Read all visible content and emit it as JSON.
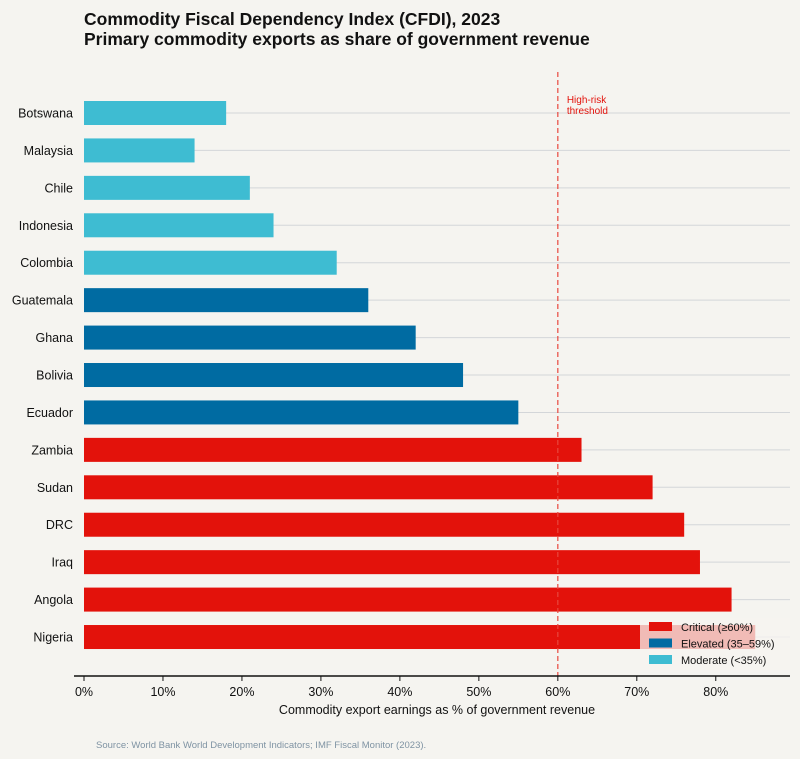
{
  "chart_data": {
    "type": "bar",
    "orientation": "horizontal",
    "title": "Commodity Fiscal Dependency Index (CFDI), 2023",
    "subtitle": "Primary commodity exports as share of government revenue",
    "xlabel": "Commodity export earnings as % of government revenue",
    "xlim": [
      0,
      89.4
    ],
    "xticks": [
      "0%",
      "10%",
      "20%",
      "30%",
      "40%",
      "50%",
      "60%",
      "70%",
      "80%"
    ],
    "grid": "horizontal",
    "categories": [
      "Botswana",
      "Malaysia",
      "Chile",
      "Indonesia",
      "Colombia",
      "Guatemala",
      "Ghana",
      "Bolivia",
      "Ecuador",
      "Zambia",
      "Sudan",
      "DRC",
      "Iraq",
      "Angola",
      "Nigeria"
    ],
    "values": [
      18,
      14,
      21,
      24,
      32,
      36,
      42,
      48,
      55,
      63,
      72,
      76,
      78,
      82,
      85
    ],
    "groups": [
      "moderate",
      "moderate",
      "moderate",
      "moderate",
      "moderate",
      "elevated",
      "elevated",
      "elevated",
      "elevated",
      "critical",
      "critical",
      "critical",
      "critical",
      "critical",
      "critical"
    ],
    "threshold": {
      "value": 60,
      "label_line1": "High-risk",
      "label_line2": "threshold",
      "color": "#e8473f"
    },
    "legend": {
      "placement": "bottom-right",
      "entries": [
        {
          "key": "critical",
          "label": "Critical (≥60%)",
          "color": "#e3120b"
        },
        {
          "key": "elevated",
          "label": "Elevated (35–59%)",
          "color": "#006ba2"
        },
        {
          "key": "moderate",
          "label": "Moderate (<35%)",
          "color": "#3ebcd2"
        }
      ]
    },
    "source": "Source: World Bank World Development Indicators; IMF Fiscal Monitor (2023)."
  }
}
